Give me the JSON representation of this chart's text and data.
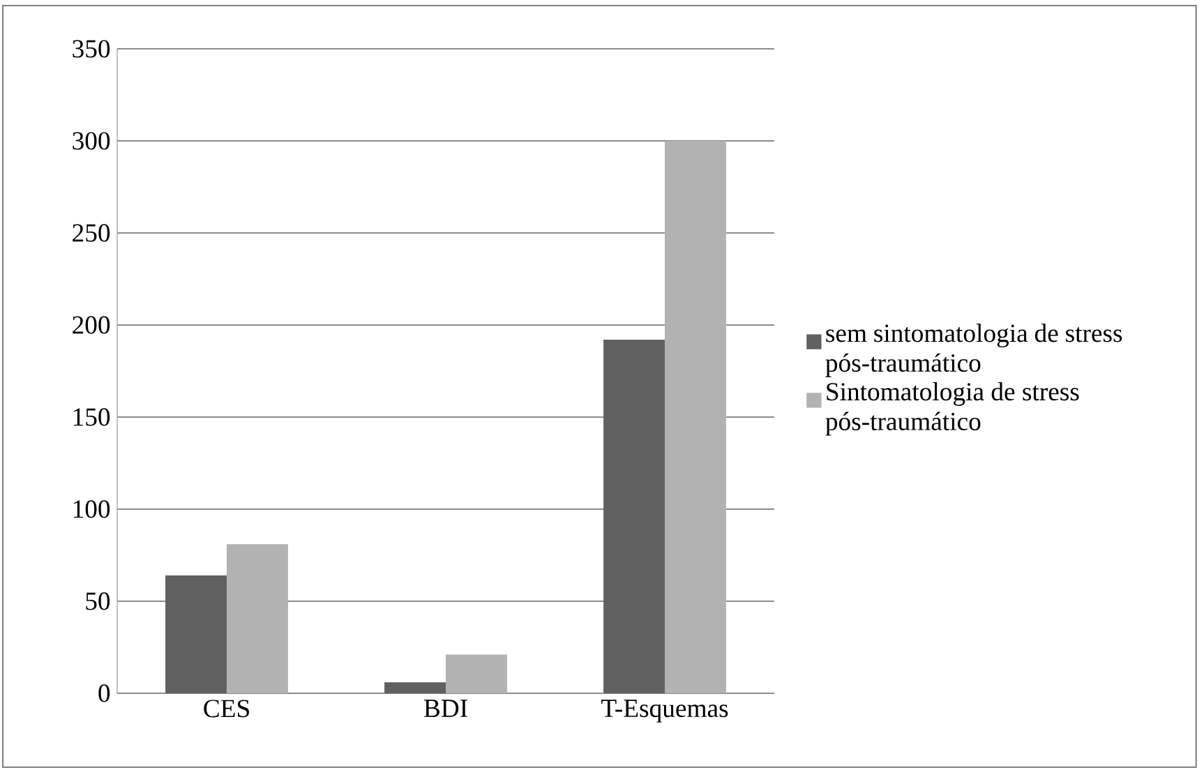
{
  "chart_data": {
    "type": "bar",
    "categories": [
      "CES",
      "BDI",
      "T-Esquemas"
    ],
    "series": [
      {
        "name": "sem sintomatologia de stress pós-traumático",
        "color": "#606060",
        "values": [
          64,
          6,
          192
        ]
      },
      {
        "name": "Sintomatologia de stress pós-traumático",
        "color": "#b2b2b2",
        "values": [
          81,
          21,
          300
        ]
      }
    ],
    "ylim": [
      0,
      350
    ],
    "yticks": [
      0,
      50,
      100,
      150,
      200,
      250,
      300,
      350
    ],
    "grid": "y",
    "legend": "right"
  }
}
